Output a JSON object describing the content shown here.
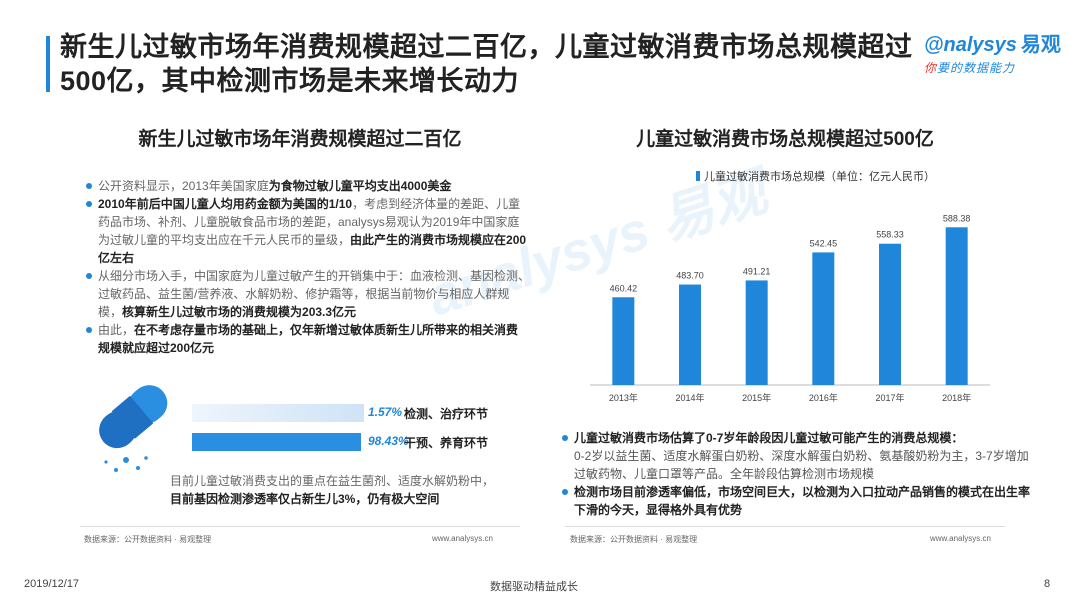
{
  "header": {
    "title": "新生儿过敏市场年消费规模超过二百亿，儿童过敏消费市场总规模超过500亿，其中检测市场是未来增长动力",
    "logo_main": "nalysys",
    "logo_prefix": "@",
    "logo_cn": "易观",
    "logo_sub_red": "你",
    "logo_sub": "要的数据能力"
  },
  "watermark": "analysys 易观",
  "left": {
    "title": "新生儿过敏市场年消费规模超过二百亿",
    "bullets": [
      {
        "normal": "公开资料显示，2013年美国家庭",
        "bold": "为食物过敏儿童平均支出4000美金",
        "tail": ""
      },
      {
        "bold_head": "2010年前后中国儿童人均用药金额为美国的1/10",
        "normal": "，考虑到经济体量的差距、儿童药品市场、补剂、儿童脱敏食品市场的差距，analysys易观认为2019年中国家庭为过敏儿童的平均支出应在千元人民币的量级，",
        "bold": "由此产生的消费市场规模应在200亿左右"
      },
      {
        "normal": "从细分市场入手，中国家庭为儿童过敏产生的开销集中于：血液检测、基因检测、过敏药品、益生菌/营养液、水解奶粉、修护霜等，根据当前物价与相应人群规模，",
        "bold": "核算新生儿过敏市场的消费规模为203.3亿元"
      },
      {
        "normal": "由此，",
        "bold": "在不考虑存量市场的基础上，仅年新增过敏体质新生儿所带来的相关消费规模就应超过200亿元"
      }
    ],
    "bars": [
      {
        "pct": "1.57%",
        "label": "检测、治疗环节",
        "value": 1.57
      },
      {
        "pct": "98.43%",
        "label": "干预、养育环节",
        "value": 98.43
      }
    ],
    "note_normal": "目前儿童过敏消费支出的重点在益生菌剂、适度水解奶粉中，",
    "note_bold": "目前基因检测渗透率仅占新生儿3%，仍有极大空间",
    "source": "数据来源：公开数据资料 · 易观整理",
    "url": "www.analysys.cn"
  },
  "right": {
    "title": "儿童过敏消费市场总规模超过500亿",
    "bullets": [
      {
        "bold": "儿童过敏消费市场估算了0-7岁年龄段因儿童过敏可能产生的消费总规模：",
        "normal": "0-2岁以益生菌、适度水解蛋白奶粉、深度水解蛋白奶粉、氨基酸奶粉为主，3-7岁增加过敏药物、儿童口罩等产品。全年龄段估算检测市场规模"
      },
      {
        "bold": "检测市场目前渗透率偏低，市场空间巨大，以检测为入口拉动产品销售的模式在出生率下滑的今天，显得格外具有优势",
        "normal": ""
      }
    ],
    "source": "数据来源：公开数据资料 · 易观整理",
    "url": "www.analysys.cn"
  },
  "chart_data": {
    "type": "bar",
    "legend": "儿童过敏消费市场总规模（单位：亿元人民币）",
    "categories": [
      "2013年",
      "2014年",
      "2015年",
      "2016年",
      "2017年",
      "2018年"
    ],
    "values": [
      460.42,
      483.7,
      491.21,
      542.45,
      558.33,
      588.38
    ],
    "value_labels": [
      "460.42",
      "483.70",
      "491.21",
      "542.45",
      "558.33",
      "588.38"
    ],
    "ylim": [
      300,
      620
    ],
    "color": "#1f86d9"
  },
  "footer": {
    "date": "2019/12/17",
    "center": "数据驱动精益成长",
    "page": "8"
  }
}
